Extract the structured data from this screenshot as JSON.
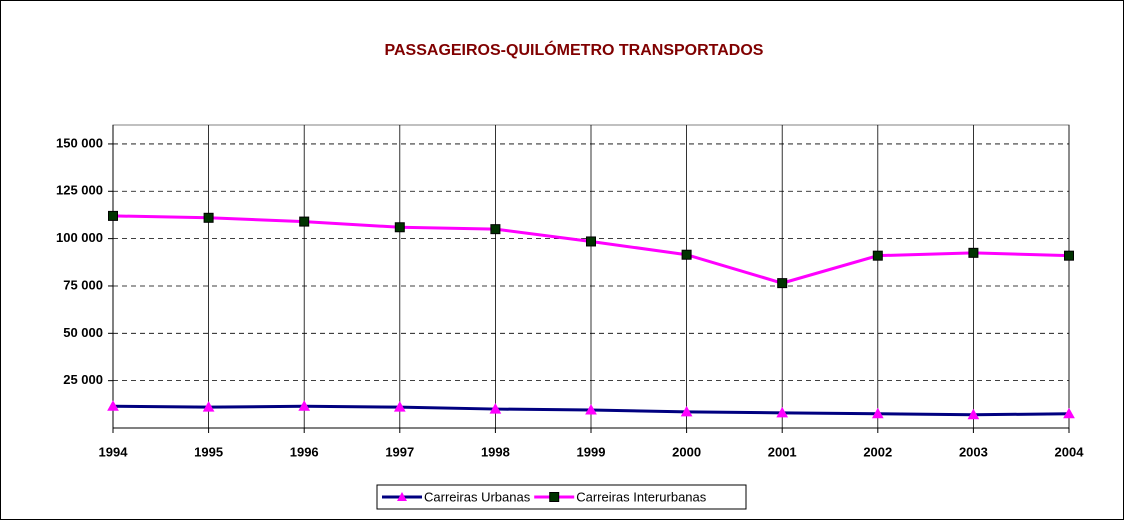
{
  "chart_data": {
    "type": "line",
    "title": "PASSAGEIROS-QUILÓMETRO TRANSPORTADOS",
    "categories": [
      "1994",
      "1995",
      "1996",
      "1997",
      "1998",
      "1999",
      "2000",
      "2001",
      "2002",
      "2003",
      "2004"
    ],
    "series": [
      {
        "name": "Carreiras Urbanas",
        "color": "#000080",
        "marker": "triangle",
        "marker_color": "#ff00ff",
        "values": [
          11500,
          11000,
          11500,
          11000,
          10000,
          9500,
          8500,
          8000,
          7500,
          7000,
          7500
        ]
      },
      {
        "name": "Carreiras Interurbanas",
        "color": "#ff00ff",
        "marker": "square",
        "marker_color": "#003300",
        "values": [
          112000,
          111000,
          109000,
          106000,
          105000,
          98500,
          91500,
          76500,
          91000,
          92500,
          91000
        ]
      }
    ],
    "ylim": [
      0,
      160000
    ],
    "yticks": [
      {
        "value": 25000,
        "label": "25 000"
      },
      {
        "value": 50000,
        "label": "50 000"
      },
      {
        "value": 75000,
        "label": "75 000"
      },
      {
        "value": 100000,
        "label": "100 000"
      },
      {
        "value": 125000,
        "label": "125 000"
      },
      {
        "value": 150000,
        "label": "150 000"
      }
    ],
    "grid": true,
    "legend": "bottom"
  }
}
